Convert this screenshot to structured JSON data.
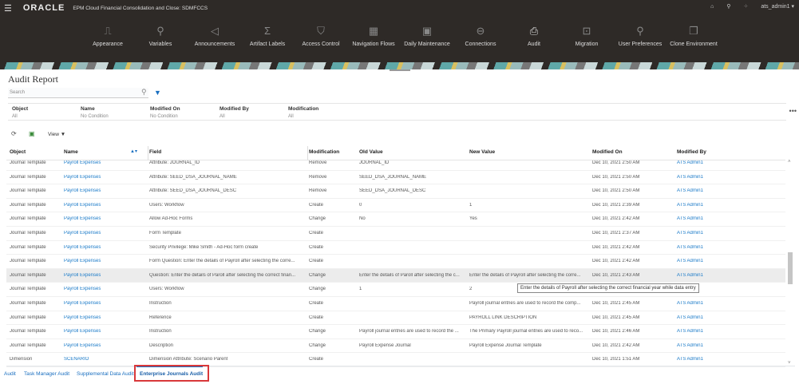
{
  "header": {
    "brand": "ORACLE",
    "app_title": "EPM Cloud Financial Consolidation and Close: SDMFCCS",
    "user": "ats_admin1 ▾"
  },
  "nav": [
    {
      "label": "Appearance",
      "icon": "appearance-icon",
      "glyph": "⎍"
    },
    {
      "label": "Variables",
      "icon": "variables-icon",
      "glyph": "⚲"
    },
    {
      "label": "Announcements",
      "icon": "megaphone-icon",
      "glyph": "◁"
    },
    {
      "label": "Artifact Labels",
      "icon": "artifact-labels-icon",
      "glyph": "Σ"
    },
    {
      "label": "Access Control",
      "icon": "shield-icon",
      "glyph": "⛉"
    },
    {
      "label": "Navigation Flows",
      "icon": "grid-icon",
      "glyph": "▦"
    },
    {
      "label": "Daily Maintenance",
      "icon": "calendar-icon",
      "glyph": "▣"
    },
    {
      "label": "Connections",
      "icon": "connections-icon",
      "glyph": "⊖"
    },
    {
      "label": "Audit",
      "icon": "audit-icon",
      "glyph": "⎙"
    },
    {
      "label": "Migration",
      "icon": "migration-icon",
      "glyph": "⊡"
    },
    {
      "label": "User Preferences",
      "icon": "user-preferences-icon",
      "glyph": "⚲"
    },
    {
      "label": "Clone Environment",
      "icon": "clone-icon",
      "glyph": "❐"
    }
  ],
  "page_title": "Audit Report",
  "search": {
    "placeholder": "Search"
  },
  "filters": [
    {
      "label": "Object",
      "value": "All"
    },
    {
      "label": "Name",
      "value": "No Condition"
    },
    {
      "label": "Modified On",
      "value": "No Condition"
    },
    {
      "label": "Modified By",
      "value": "All"
    },
    {
      "label": "Modification",
      "value": "All"
    }
  ],
  "toolbar": {
    "view_label": "View ▼"
  },
  "columns": [
    "Object",
    "Name",
    "Field",
    "Modification",
    "Old Value",
    "New Value",
    "Modified On",
    "Modified By"
  ],
  "rows": [
    [
      "Journal Template",
      "Payroll Expenses",
      "Attribute: JOURNAL_ID",
      "Remove",
      "JOURNAL_ID",
      "",
      "Dec 10, 2021 2:50 AM",
      "ATS Admin1"
    ],
    [
      "Journal Template",
      "Payroll Expenses",
      "Attribute: SEED_DSA_JOURNAL_NAME",
      "Remove",
      "SEED_DSA_JOURNAL_NAME",
      "",
      "Dec 10, 2021 2:50 AM",
      "ATS Admin1"
    ],
    [
      "Journal Template",
      "Payroll Expenses",
      "Attribute: SEED_DSA_JOURNAL_DESC",
      "Remove",
      "SEED_DSA_JOURNAL_DESC",
      "",
      "Dec 10, 2021 2:50 AM",
      "ATS Admin1"
    ],
    [
      "Journal Template",
      "Payroll Expenses",
      "Users: Workflow",
      "Create",
      "0",
      "1",
      "Dec 10, 2021 2:39 AM",
      "ATS Admin1"
    ],
    [
      "Journal Template",
      "Payroll Expenses",
      "Allow Ad-Hoc Forms",
      "Change",
      "No",
      "Yes",
      "Dec 10, 2021 2:42 AM",
      "ATS Admin1"
    ],
    [
      "Journal Template",
      "Payroll Expenses",
      "Form Template",
      "Create",
      "",
      "",
      "Dec 10, 2021 2:37 AM",
      "ATS Admin1"
    ],
    [
      "Journal Template",
      "Payroll Expenses",
      "Security Privilege: Mike Smith - Ad-Hoc form create",
      "Create",
      "",
      "",
      "Dec 10, 2021 2:42 AM",
      "ATS Admin1"
    ],
    [
      "Journal Template",
      "Payroll Expenses",
      "Form Question: Enter the details of Payroll after selecting the corre...",
      "Create",
      "",
      "",
      "Dec 10, 2021 2:42 AM",
      "ATS Admin1"
    ],
    [
      "Journal Template",
      "Payroll Expenses",
      "Question: Enter the details of Paroll after selecting the correct finan...",
      "Change",
      "Enter the details of Paroll after selecting the c...",
      "Enter the details of Payroll after selecting the corre...",
      "Dec 10, 2021 2:43 AM",
      "ATS Admin1"
    ],
    [
      "Journal Template",
      "Payroll Expenses",
      "Users: Workflow",
      "Change",
      "1",
      "2",
      "",
      ""
    ],
    [
      "Journal Template",
      "Payroll Expenses",
      "Instruction",
      "Create",
      "",
      "Payroll journal entries are used to record the comp...",
      "Dec 10, 2021 2:45 AM",
      "ATS Admin1"
    ],
    [
      "Journal Template",
      "Payroll Expenses",
      "Reference",
      "Create",
      "",
      "PAYROLL LINK DESCRIPTION",
      "Dec 10, 2021 2:45 AM",
      "ATS Admin1"
    ],
    [
      "Journal Template",
      "Payroll Expenses",
      "Instruction",
      "Change",
      "Payroll journal entries are used to record the ...",
      "The Primary Payroll journal entries are used to reco...",
      "Dec 10, 2021 2:46 AM",
      "ATS Admin1"
    ],
    [
      "Journal Template",
      "Payroll Expenses",
      "Description",
      "Change",
      "Payroll Expense Journal",
      "Payroll Expense Journal Template",
      "Dec 10, 2021 2:42 AM",
      "ATS Admin1"
    ],
    [
      "Dimension",
      "SCENARIO",
      "Dimension Attribute: Scenario Parent",
      "Create",
      "",
      "",
      "Dec 10, 2021 1:51 AM",
      "ATS Admin1"
    ]
  ],
  "highlighted_row": 8,
  "tooltip": "Enter the details of Payroll after selecting the correct financial year while data entry",
  "tabs": [
    {
      "label": "Audit",
      "active": false
    },
    {
      "label": "Task Manager Audit",
      "active": false
    },
    {
      "label": "Supplemental Data Audit",
      "active": false
    },
    {
      "label": "Enterprise Journals Audit",
      "active": true
    }
  ],
  "colors": {
    "header_bg": "#2e2a27",
    "link": "#1a7ac8",
    "accent": "#1a6fc0",
    "highlight_box": "#d9383a"
  }
}
